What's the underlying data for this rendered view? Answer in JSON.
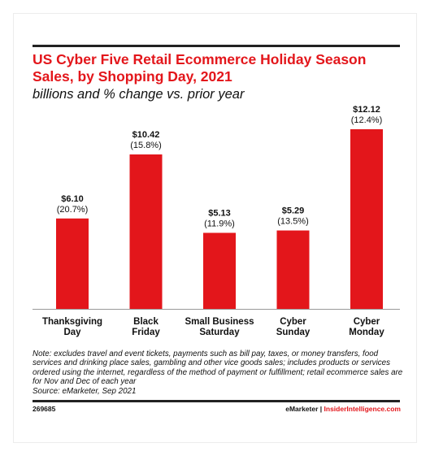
{
  "chart_data": {
    "type": "bar",
    "title": "US Cyber Five Retail Ecommerce Holiday Season Sales, by Shopping Day, 2021",
    "subtitle": "billions and % change vs. prior year",
    "categories": [
      [
        "Thanksgiving",
        "Day"
      ],
      [
        "Black",
        "Friday"
      ],
      [
        "Small Business",
        "Saturday"
      ],
      [
        "Cyber",
        "Sunday"
      ],
      [
        "Cyber",
        "Monday"
      ]
    ],
    "values": [
      6.1,
      10.42,
      5.13,
      5.29,
      12.12
    ],
    "value_labels": [
      "$6.10",
      "$10.42",
      "$5.13",
      "$5.29",
      "$12.12"
    ],
    "change_labels": [
      "(20.7%)",
      "(15.8%)",
      "(11.9%)",
      "(13.5%)",
      "(12.4%)"
    ],
    "ylim": [
      0,
      12.12
    ],
    "grid": false,
    "bar_color": "#e3161b"
  },
  "note": "Note: excludes travel and event tickets, payments such as bill pay, taxes, or money transfers, food services and drinking place sales, gambling and other vice goods sales; includes products or services ordered using the internet, regardless of the method of payment or fulfillment; retail ecommerce sales are for Nov and Dec of each year",
  "source": "Source: eMarketer, Sep 2021",
  "footer": {
    "id": "269685",
    "brand_left": "eMarketer",
    "separator": " | ",
    "brand_right": "InsiderIntelligence.com"
  },
  "colors": {
    "accent": "#e3161b",
    "text": "#111111",
    "rule": "#222222"
  }
}
